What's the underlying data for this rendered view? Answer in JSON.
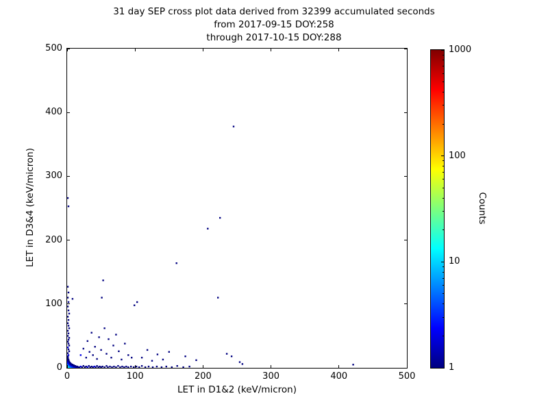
{
  "title": {
    "line1": "31 day SEP cross plot data derived from 32399 accumulated seconds",
    "line2": "from 2017-09-15 DOY:258",
    "line3": "through 2017-10-15 DOY:288"
  },
  "axes": {
    "xlabel": "LET in D1&2 (keV/micron)",
    "ylabel": "LET in D3&4 (keV/micron)",
    "xlim": [
      0,
      500
    ],
    "ylim": [
      0,
      500
    ],
    "x_ticks": [
      0,
      100,
      200,
      300,
      400,
      500
    ],
    "y_ticks": [
      0,
      100,
      200,
      300,
      400,
      500
    ]
  },
  "colorbar": {
    "label": "Counts",
    "scale": "log",
    "range": [
      1,
      1000
    ],
    "ticks": [
      1,
      10,
      100,
      1000
    ],
    "colormap": "jet",
    "gradient": [
      [
        0,
        "#000080"
      ],
      [
        0.125,
        "#0000ff"
      ],
      [
        0.375,
        "#00ffff"
      ],
      [
        0.5,
        "#7dff7d"
      ],
      [
        0.625,
        "#ffff00"
      ],
      [
        0.875,
        "#ff0000"
      ],
      [
        1,
        "#800000"
      ]
    ]
  },
  "chart_data": {
    "type": "scatter",
    "title": "31 day SEP cross plot data derived from 32399 accumulated seconds from 2017-09-15 DOY:258 through 2017-10-15 DOY:288",
    "xlabel": "LET in D1&2 (keV/micron)",
    "ylabel": "LET in D3&4 (keV/micron)",
    "xlim": [
      0,
      500
    ],
    "ylim": [
      0,
      500
    ],
    "color_scale": {
      "label": "Counts",
      "scale": "log",
      "min": 1,
      "max": 1000,
      "colormap": "jet"
    },
    "points_format": [
      "x_keV_per_micron",
      "y_keV_per_micron",
      "counts"
    ],
    "points": [
      [
        1,
        1,
        30
      ],
      [
        2,
        1,
        20
      ],
      [
        3,
        1,
        15
      ],
      [
        4,
        1,
        12
      ],
      [
        5,
        1,
        10
      ],
      [
        6,
        1,
        8
      ],
      [
        7,
        1,
        6
      ],
      [
        8,
        1,
        5
      ],
      [
        9,
        1,
        5
      ],
      [
        10,
        1,
        4
      ],
      [
        11,
        1,
        3
      ],
      [
        12,
        1,
        3
      ],
      [
        13,
        1,
        2
      ],
      [
        14,
        1,
        2
      ],
      [
        15,
        1,
        2
      ],
      [
        16,
        1,
        2
      ],
      [
        17,
        1,
        1
      ],
      [
        18,
        1,
        1
      ],
      [
        1,
        2,
        18
      ],
      [
        2,
        2,
        14
      ],
      [
        3,
        2,
        10
      ],
      [
        4,
        2,
        8
      ],
      [
        5,
        2,
        6
      ],
      [
        6,
        2,
        5
      ],
      [
        7,
        2,
        4
      ],
      [
        8,
        2,
        3
      ],
      [
        9,
        2,
        3
      ],
      [
        10,
        2,
        2
      ],
      [
        11,
        2,
        2
      ],
      [
        12,
        2,
        2
      ],
      [
        13,
        2,
        1
      ],
      [
        14,
        2,
        1
      ],
      [
        15,
        2,
        1
      ],
      [
        1,
        3,
        12
      ],
      [
        2,
        3,
        9
      ],
      [
        3,
        3,
        7
      ],
      [
        4,
        3,
        5
      ],
      [
        5,
        3,
        4
      ],
      [
        6,
        3,
        3
      ],
      [
        7,
        3,
        3
      ],
      [
        8,
        3,
        2
      ],
      [
        9,
        3,
        2
      ],
      [
        10,
        3,
        1
      ],
      [
        11,
        3,
        1
      ],
      [
        12,
        3,
        1
      ],
      [
        1,
        4,
        9
      ],
      [
        2,
        4,
        7
      ],
      [
        3,
        4,
        5
      ],
      [
        4,
        4,
        4
      ],
      [
        5,
        4,
        3
      ],
      [
        6,
        4,
        2
      ],
      [
        7,
        4,
        2
      ],
      [
        8,
        4,
        1
      ],
      [
        9,
        4,
        1
      ],
      [
        10,
        4,
        1
      ],
      [
        1,
        5,
        7
      ],
      [
        2,
        5,
        5
      ],
      [
        3,
        5,
        4
      ],
      [
        4,
        5,
        3
      ],
      [
        5,
        5,
        2
      ],
      [
        6,
        5,
        2
      ],
      [
        7,
        5,
        1
      ],
      [
        8,
        5,
        1
      ],
      [
        1,
        6,
        5
      ],
      [
        2,
        6,
        4
      ],
      [
        3,
        6,
        3
      ],
      [
        4,
        6,
        2
      ],
      [
        5,
        6,
        1
      ],
      [
        6,
        6,
        1
      ],
      [
        1,
        7,
        4
      ],
      [
        2,
        7,
        3
      ],
      [
        3,
        7,
        2
      ],
      [
        4,
        7,
        1
      ],
      [
        5,
        7,
        1
      ],
      [
        1,
        8,
        3
      ],
      [
        2,
        8,
        2
      ],
      [
        3,
        8,
        2
      ],
      [
        4,
        8,
        1
      ],
      [
        1,
        9,
        3
      ],
      [
        2,
        9,
        2
      ],
      [
        3,
        9,
        1
      ],
      [
        1,
        10,
        2
      ],
      [
        2,
        10,
        2
      ],
      [
        3,
        10,
        1
      ],
      [
        1,
        11,
        2
      ],
      [
        2,
        11,
        1
      ],
      [
        1,
        12,
        2
      ],
      [
        2,
        12,
        1
      ],
      [
        1,
        13,
        1
      ],
      [
        2,
        13,
        1
      ],
      [
        1,
        14,
        1
      ],
      [
        1,
        15,
        1
      ],
      [
        1,
        16,
        1
      ],
      [
        1,
        17,
        1
      ],
      [
        1,
        18,
        1
      ],
      [
        20,
        2,
        2
      ],
      [
        22,
        1,
        1
      ],
      [
        24,
        3,
        1
      ],
      [
        26,
        1,
        1
      ],
      [
        28,
        2,
        1
      ],
      [
        30,
        1,
        2
      ],
      [
        32,
        3,
        1
      ],
      [
        34,
        1,
        1
      ],
      [
        36,
        2,
        1
      ],
      [
        38,
        1,
        1
      ],
      [
        40,
        2,
        2
      ],
      [
        42,
        1,
        1
      ],
      [
        44,
        3,
        1
      ],
      [
        46,
        1,
        1
      ],
      [
        48,
        2,
        1
      ],
      [
        50,
        1,
        1
      ],
      [
        52,
        2,
        1
      ],
      [
        55,
        1,
        1
      ],
      [
        58,
        3,
        1
      ],
      [
        60,
        1,
        1
      ],
      [
        63,
        2,
        1
      ],
      [
        66,
        1,
        1
      ],
      [
        69,
        2,
        1
      ],
      [
        72,
        1,
        1
      ],
      [
        75,
        3,
        1
      ],
      [
        78,
        1,
        1
      ],
      [
        81,
        2,
        1
      ],
      [
        84,
        1,
        1
      ],
      [
        87,
        2,
        1
      ],
      [
        90,
        1,
        1
      ],
      [
        94,
        2,
        1
      ],
      [
        98,
        1,
        1
      ],
      [
        102,
        2,
        1
      ],
      [
        106,
        1,
        1
      ],
      [
        110,
        3,
        1
      ],
      [
        115,
        1,
        1
      ],
      [
        120,
        2,
        1
      ],
      [
        126,
        1,
        1
      ],
      [
        132,
        2,
        1
      ],
      [
        139,
        1,
        1
      ],
      [
        146,
        2,
        1
      ],
      [
        154,
        1,
        1
      ],
      [
        162,
        3,
        1
      ],
      [
        171,
        1,
        1
      ],
      [
        180,
        2,
        1
      ],
      [
        254,
        9,
        1
      ],
      [
        258,
        6,
        1
      ],
      [
        421,
        5,
        1
      ],
      [
        2,
        20,
        2
      ],
      [
        1,
        23,
        1
      ],
      [
        3,
        26,
        1
      ],
      [
        2,
        29,
        1
      ],
      [
        1,
        32,
        2
      ],
      [
        3,
        35,
        1
      ],
      [
        2,
        38,
        1
      ],
      [
        1,
        41,
        1
      ],
      [
        2,
        44,
        1
      ],
      [
        3,
        47,
        1
      ],
      [
        1,
        50,
        1
      ],
      [
        2,
        54,
        1
      ],
      [
        1,
        58,
        1
      ],
      [
        3,
        62,
        1
      ],
      [
        2,
        66,
        1
      ],
      [
        1,
        70,
        1
      ],
      [
        2,
        75,
        1
      ],
      [
        1,
        80,
        1
      ],
      [
        3,
        85,
        1
      ],
      [
        2,
        90,
        1
      ],
      [
        1,
        96,
        1
      ],
      [
        2,
        103,
        1
      ],
      [
        1,
        110,
        1
      ],
      [
        2,
        118,
        1
      ],
      [
        1,
        127,
        1
      ],
      [
        2,
        253,
        1
      ],
      [
        1,
        266,
        1
      ],
      [
        20,
        20,
        2
      ],
      [
        24,
        30,
        1
      ],
      [
        28,
        16,
        1
      ],
      [
        30,
        42,
        1
      ],
      [
        33,
        25,
        1
      ],
      [
        36,
        55,
        1
      ],
      [
        38,
        20,
        1
      ],
      [
        41,
        33,
        1
      ],
      [
        44,
        14,
        1
      ],
      [
        47,
        48,
        1
      ],
      [
        50,
        28,
        1
      ],
      [
        53,
        137,
        1
      ],
      [
        55,
        62,
        1
      ],
      [
        58,
        22,
        1
      ],
      [
        61,
        45,
        1
      ],
      [
        65,
        16,
        1
      ],
      [
        68,
        35,
        1
      ],
      [
        72,
        52,
        1
      ],
      [
        76,
        26,
        1
      ],
      [
        80,
        13,
        1
      ],
      [
        85,
        38,
        1
      ],
      [
        90,
        20,
        1
      ],
      [
        95,
        16,
        1
      ],
      [
        99,
        98,
        1
      ],
      [
        103,
        103,
        1
      ],
      [
        8,
        108,
        1
      ],
      [
        51,
        110,
        1
      ],
      [
        110,
        16,
        1
      ],
      [
        118,
        28,
        1
      ],
      [
        125,
        11,
        1
      ],
      [
        133,
        21,
        1
      ],
      [
        141,
        13,
        1
      ],
      [
        150,
        25,
        1
      ],
      [
        161,
        164,
        1
      ],
      [
        174,
        18,
        1
      ],
      [
        190,
        12,
        1
      ],
      [
        207,
        218,
        1
      ],
      [
        222,
        110,
        1
      ],
      [
        225,
        235,
        1
      ],
      [
        245,
        378,
        1
      ],
      [
        235,
        22,
        1
      ],
      [
        242,
        18,
        1
      ]
    ]
  }
}
